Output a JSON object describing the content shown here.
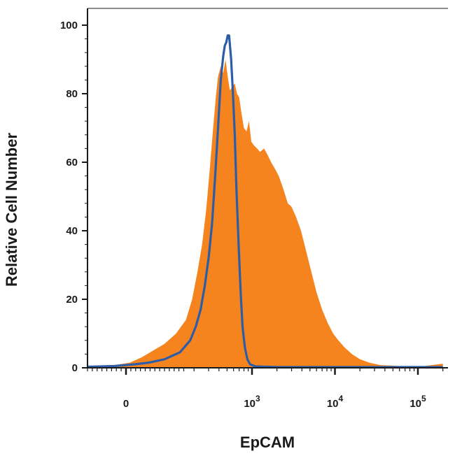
{
  "chart_data": {
    "type": "area",
    "xlabel": "EpCAM",
    "ylabel": "Relative Cell Number",
    "ylim": [
      0,
      100
    ],
    "x_scale": "biexponential",
    "y_ticks": [
      {
        "value": 0,
        "label": "0"
      },
      {
        "value": 20,
        "label": "20"
      },
      {
        "value": 40,
        "label": "40"
      },
      {
        "value": 60,
        "label": "60"
      },
      {
        "value": 80,
        "label": "80"
      },
      {
        "value": 100,
        "label": "100"
      }
    ],
    "x_ticks": [
      {
        "value": 0,
        "label": "0",
        "base": "",
        "exp": ""
      },
      {
        "value": 1000,
        "label": "",
        "base": "10",
        "exp": "3"
      },
      {
        "value": 10000,
        "label": "",
        "base": "10",
        "exp": "4"
      },
      {
        "value": 100000,
        "label": "",
        "base": "10",
        "exp": "5"
      }
    ],
    "grid": false,
    "series": [
      {
        "style": "filled",
        "color": "#F5841F",
        "points": [
          [
            -120,
            0.5
          ],
          [
            -30,
            0.8
          ],
          [
            10,
            1.5
          ],
          [
            40,
            3
          ],
          [
            70,
            5
          ],
          [
            100,
            7
          ],
          [
            130,
            10
          ],
          [
            160,
            14
          ],
          [
            190,
            20
          ],
          [
            220,
            28
          ],
          [
            250,
            36
          ],
          [
            280,
            46
          ],
          [
            310,
            58
          ],
          [
            340,
            70
          ],
          [
            370,
            80
          ],
          [
            390,
            85
          ],
          [
            420,
            88
          ],
          [
            450,
            86
          ],
          [
            480,
            90
          ],
          [
            510,
            85
          ],
          [
            540,
            81
          ],
          [
            580,
            82
          ],
          [
            620,
            83
          ],
          [
            660,
            80
          ],
          [
            700,
            79
          ],
          [
            750,
            74
          ],
          [
            800,
            70
          ],
          [
            860,
            69
          ],
          [
            920,
            72
          ],
          [
            980,
            66
          ],
          [
            1050,
            65
          ],
          [
            1150,
            64
          ],
          [
            1250,
            63
          ],
          [
            1400,
            64
          ],
          [
            1550,
            62
          ],
          [
            1700,
            60
          ],
          [
            1900,
            58
          ],
          [
            2100,
            56
          ],
          [
            2400,
            52
          ],
          [
            2700,
            48
          ],
          [
            3000,
            47
          ],
          [
            3400,
            44
          ],
          [
            3900,
            40
          ],
          [
            4500,
            34
          ],
          [
            5200,
            28
          ],
          [
            6000,
            22
          ],
          [
            7000,
            17
          ],
          [
            8200,
            13
          ],
          [
            9500,
            10
          ],
          [
            11000,
            8
          ],
          [
            13000,
            6
          ],
          [
            16000,
            4
          ],
          [
            20000,
            2.5
          ],
          [
            26000,
            1.5
          ],
          [
            35000,
            0.8
          ],
          [
            60000,
            0.5
          ],
          [
            120000,
            0.5
          ],
          [
            200000,
            1.2
          ]
        ]
      },
      {
        "style": "line",
        "color": "#2E5DA8",
        "points": [
          [
            -120,
            0.3
          ],
          [
            -30,
            0.5
          ],
          [
            20,
            1
          ],
          [
            60,
            1.5
          ],
          [
            100,
            2.5
          ],
          [
            140,
            4.5
          ],
          [
            180,
            8
          ],
          [
            210,
            12
          ],
          [
            240,
            17
          ],
          [
            270,
            24
          ],
          [
            300,
            32
          ],
          [
            330,
            42
          ],
          [
            360,
            56
          ],
          [
            390,
            70
          ],
          [
            420,
            84
          ],
          [
            450,
            91
          ],
          [
            470,
            94
          ],
          [
            490,
            95
          ],
          [
            510,
            97
          ],
          [
            530,
            97
          ],
          [
            560,
            90
          ],
          [
            590,
            80
          ],
          [
            620,
            68
          ],
          [
            650,
            52
          ],
          [
            690,
            36
          ],
          [
            730,
            22
          ],
          [
            770,
            12
          ],
          [
            820,
            6
          ],
          [
            880,
            2.5
          ],
          [
            950,
            1
          ],
          [
            1100,
            0.4
          ],
          [
            2000,
            0.2
          ],
          [
            200000,
            0.2
          ]
        ]
      }
    ]
  }
}
